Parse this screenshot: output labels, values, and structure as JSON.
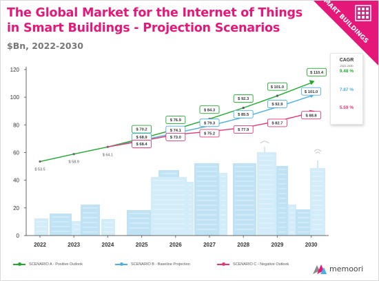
{
  "title": "The Global Market for the Internet of Things in Smart Buildings - Projection Scenarios",
  "subtitle": "$Bn, 2022-2030",
  "corner_badge": "SMART BUILDINGS",
  "cagr": {
    "title": "CAGR",
    "period": "2022-2030",
    "values": [
      "9.48 %",
      "7.87 %",
      "5.59 %"
    ]
  },
  "brand": "memoori",
  "colors": {
    "accent": "#e5187a",
    "scenario_a": "#1cab2a",
    "scenario_b": "#4ab0dd",
    "scenario_c": "#e5366f",
    "buildings": "#c9e7f7"
  },
  "chart_data": {
    "type": "line",
    "title": "The Global Market for the Internet of Things in Smart Buildings - Projection Scenarios",
    "subtitle": "$Bn, 2022-2030",
    "x": [
      2022,
      2023,
      2024,
      2025,
      2026,
      2027,
      2028,
      2029,
      2030
    ],
    "ylim": [
      0,
      120
    ],
    "yticks": [
      0,
      20,
      40,
      60,
      80,
      100,
      120
    ],
    "grid": false,
    "legend_position": "bottom",
    "historic": {
      "x": [
        2022,
        2023,
        2024
      ],
      "labels": [
        "$ 53.5",
        "$ 58.9",
        "$ 64.1"
      ]
    },
    "series": [
      {
        "name": "SCENARIO A - Positive Outlook",
        "x": [
          2024,
          2025,
          2026,
          2027,
          2028,
          2029,
          2030
        ],
        "values": [
          64.1,
          70.2,
          76.9,
          84.3,
          92.3,
          101.0,
          110.4
        ],
        "labels": [
          "$ 70.2",
          "$ 76.9",
          "$ 84.3",
          "$ 92.3",
          "$ 101.0",
          "$ 110.4"
        ],
        "color": "#1cab2a"
      },
      {
        "name": "SCENARIO B - Baseline Projection",
        "x": [
          2024,
          2025,
          2026,
          2027,
          2028,
          2029,
          2030
        ],
        "values": [
          64.1,
          68.9,
          74.1,
          79.3,
          85.5,
          92.9,
          101.0
        ],
        "labels": [
          "$ 68.9",
          "$ 74.1",
          "$ 79.3",
          "$ 85.5",
          "$ 92.9",
          "$ 101.0"
        ],
        "color": "#4ab0dd"
      },
      {
        "name": "SCENARIO C - Negative Outlook",
        "x": [
          2024,
          2025,
          2026,
          2027,
          2028,
          2029,
          2030
        ],
        "values": [
          64.1,
          68.4,
          73.0,
          75.2,
          77.9,
          82.7,
          88.8
        ],
        "labels": [
          "$ 68.4",
          "$ 73.0",
          "$ 75.2",
          "$ 77.9",
          "$ 82.7",
          "$ 88.8"
        ],
        "color": "#e5366f"
      }
    ]
  }
}
